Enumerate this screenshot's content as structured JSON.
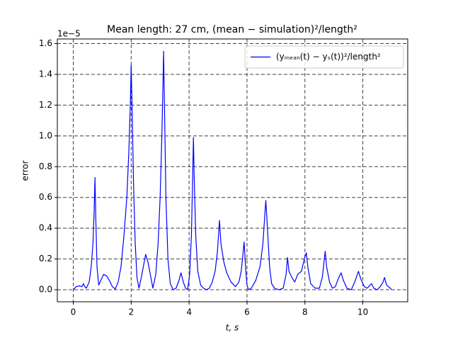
{
  "chart_data": {
    "type": "line",
    "title": "Mean length: 27 cm, (mean − simulation)²/length²",
    "x_label": "t, s",
    "y_label": "error",
    "y_offset_label": "1e−5",
    "x": [
      0.0,
      0.1,
      0.2,
      0.3,
      0.35,
      0.4,
      0.45,
      0.55,
      0.62,
      0.68,
      0.72,
      0.75,
      0.78,
      0.82,
      0.88,
      0.95,
      1.05,
      1.15,
      1.25,
      1.35,
      1.45,
      1.55,
      1.65,
      1.75,
      1.85,
      1.92,
      1.97,
      2.0,
      2.03,
      2.08,
      2.14,
      2.2,
      2.27,
      2.35,
      2.45,
      2.5,
      2.58,
      2.68,
      2.75,
      2.85,
      2.93,
      3.0,
      3.06,
      3.1,
      3.12,
      3.15,
      3.2,
      3.27,
      3.35,
      3.45,
      3.55,
      3.65,
      3.72,
      3.8,
      3.88,
      3.95,
      4.02,
      4.08,
      4.12,
      4.15,
      4.18,
      4.23,
      4.3,
      4.4,
      4.5,
      4.6,
      4.7,
      4.8,
      4.9,
      4.98,
      5.05,
      5.1,
      5.2,
      5.3,
      5.45,
      5.6,
      5.72,
      5.8,
      5.87,
      5.9,
      5.95,
      6.0,
      6.05,
      6.15,
      6.3,
      6.45,
      6.55,
      6.62,
      6.65,
      6.7,
      6.78,
      6.85,
      6.95,
      7.1,
      7.25,
      7.35,
      7.4,
      7.45,
      7.55,
      7.65,
      7.75,
      7.88,
      7.98,
      8.05,
      8.1,
      8.2,
      8.35,
      8.5,
      8.6,
      8.66,
      8.7,
      8.75,
      8.85,
      8.95,
      9.05,
      9.15,
      9.25,
      9.33,
      9.45,
      9.6,
      9.72,
      9.85,
      9.93,
      10.05,
      10.15,
      10.25,
      10.3,
      10.38,
      10.5,
      10.6,
      10.7,
      10.75,
      10.82,
      10.95,
      11.0
    ],
    "series": [
      {
        "name": "(yₘₑₐₙ(t) − yₛ(t))²/length²",
        "color": "#0000ff",
        "values": [
          0.0,
          0.02,
          0.025,
          0.02,
          0.04,
          0.02,
          0.01,
          0.05,
          0.15,
          0.3,
          0.5,
          0.73,
          0.45,
          0.15,
          0.03,
          0.06,
          0.1,
          0.09,
          0.06,
          0.02,
          0.005,
          0.05,
          0.15,
          0.35,
          0.6,
          0.9,
          1.2,
          1.46,
          1.2,
          0.7,
          0.3,
          0.08,
          0.01,
          0.08,
          0.18,
          0.23,
          0.18,
          0.08,
          0.01,
          0.1,
          0.3,
          0.6,
          1.0,
          1.35,
          1.55,
          1.2,
          0.6,
          0.2,
          0.04,
          0.0,
          0.01,
          0.06,
          0.11,
          0.05,
          0.01,
          0.0,
          0.1,
          0.35,
          0.7,
          0.99,
          0.7,
          0.35,
          0.12,
          0.03,
          0.01,
          0.0,
          0.01,
          0.05,
          0.12,
          0.25,
          0.45,
          0.3,
          0.18,
          0.11,
          0.05,
          0.02,
          0.05,
          0.12,
          0.25,
          0.31,
          0.15,
          0.03,
          0.0,
          0.01,
          0.06,
          0.15,
          0.3,
          0.5,
          0.58,
          0.42,
          0.15,
          0.04,
          0.01,
          0.0,
          0.01,
          0.1,
          0.21,
          0.12,
          0.08,
          0.05,
          0.1,
          0.12,
          0.2,
          0.24,
          0.15,
          0.04,
          0.01,
          0.01,
          0.08,
          0.18,
          0.25,
          0.15,
          0.05,
          0.01,
          0.02,
          0.07,
          0.11,
          0.06,
          0.01,
          0.0,
          0.05,
          0.12,
          0.07,
          0.02,
          0.01,
          0.03,
          0.04,
          0.01,
          0.0,
          0.02,
          0.05,
          0.08,
          0.03,
          0.01,
          0.0
        ]
      }
    ],
    "xlim": [
      -0.55,
      11.55
    ],
    "ylim": [
      -0.078,
      1.63
    ],
    "xticks": [
      0,
      2,
      4,
      6,
      8,
      10
    ],
    "yticks": [
      {
        "value": 0,
        "label": "0.0"
      },
      0.2,
      0.4,
      0.6,
      0.8,
      {
        "value": 1,
        "label": "1.0"
      },
      1.2,
      1.4,
      1.6
    ],
    "grid": true,
    "legend": "upper right"
  }
}
